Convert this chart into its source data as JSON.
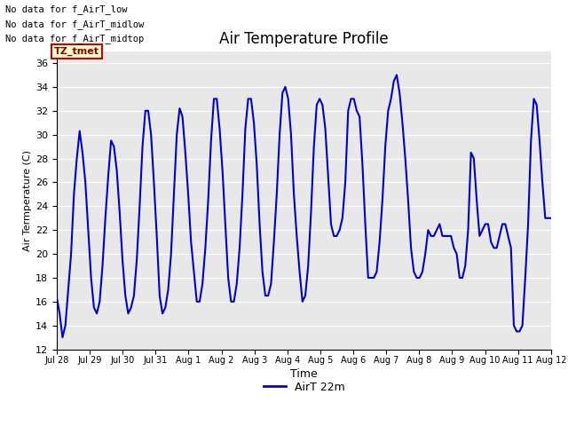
{
  "title": "Air Temperature Profile",
  "xlabel": "Time",
  "ylabel": "Air Termperature (C)",
  "ylim": [
    12,
    37
  ],
  "yticks": [
    12,
    14,
    16,
    18,
    20,
    22,
    24,
    26,
    28,
    30,
    32,
    34,
    36
  ],
  "bg_color": "#e8e8e8",
  "line_color": "#0000cc",
  "line_width": 1.5,
  "legend_label": "AirT 22m",
  "text_lines": [
    "No data for f_AirT_low",
    "No data for f_AirT_midlow",
    "No data for f_AirT_midtop"
  ],
  "tz_label": "TZ_tmet",
  "xtick_labels": [
    "Jul 28",
    "Jul 29",
    "Jul 30",
    "Jul 31",
    "Aug 1",
    "Aug 2",
    "Aug 3",
    "Aug 4",
    "Aug 5",
    "Aug 6",
    "Aug 7",
    "Aug 8",
    "Aug 9",
    "Aug 10",
    "Aug 11",
    "Aug 12"
  ],
  "y_values": [
    16.3,
    15.0,
    13.0,
    14.0,
    17.0,
    20.0,
    25.0,
    28.0,
    30.3,
    28.5,
    26.0,
    22.0,
    18.0,
    15.5,
    15.0,
    16.0,
    19.0,
    23.0,
    26.5,
    29.5,
    29.0,
    27.0,
    23.5,
    19.5,
    16.5,
    15.0,
    15.5,
    16.5,
    19.5,
    24.0,
    29.0,
    32.0,
    32.0,
    30.0,
    26.0,
    21.5,
    16.5,
    15.0,
    15.5,
    17.0,
    20.0,
    25.0,
    30.0,
    32.2,
    31.5,
    28.5,
    25.0,
    21.0,
    18.5,
    16.0,
    16.0,
    17.5,
    20.5,
    24.5,
    29.5,
    33.0,
    33.0,
    30.5,
    27.0,
    22.5,
    18.0,
    16.0,
    16.0,
    17.5,
    20.5,
    25.0,
    30.5,
    33.0,
    33.0,
    31.0,
    27.5,
    22.5,
    18.5,
    16.5,
    16.5,
    17.5,
    21.0,
    25.0,
    30.0,
    33.5,
    34.0,
    33.0,
    30.0,
    25.0,
    21.5,
    18.5,
    16.0,
    16.5,
    19.0,
    23.5,
    29.0,
    32.5,
    33.0,
    32.5,
    30.5,
    26.5,
    22.5,
    21.5,
    21.5,
    22.0,
    23.0,
    26.0,
    32.0,
    33.0,
    33.0,
    32.0,
    31.5,
    27.5,
    22.5,
    18.0,
    18.0,
    18.0,
    18.5,
    21.0,
    24.5,
    29.0,
    32.0,
    33.0,
    34.5,
    35.0,
    33.5,
    31.0,
    28.0,
    24.5,
    20.5,
    18.5,
    18.0,
    18.0,
    18.5,
    20.0,
    22.0,
    21.5,
    21.5,
    22.0,
    22.5,
    21.5,
    21.5,
    21.5,
    21.5,
    20.5,
    20.0,
    18.0,
    18.0,
    19.0,
    22.0,
    28.5,
    28.0,
    24.5,
    21.5,
    22.0,
    22.5,
    22.5,
    21.0,
    20.5,
    20.5,
    21.5,
    22.5,
    22.5,
    21.5,
    20.5,
    14.0,
    13.5,
    13.5,
    14.0,
    18.0,
    22.5,
    29.5,
    33.0,
    32.5,
    29.5,
    26.0,
    23.0,
    23.0,
    23.0
  ]
}
